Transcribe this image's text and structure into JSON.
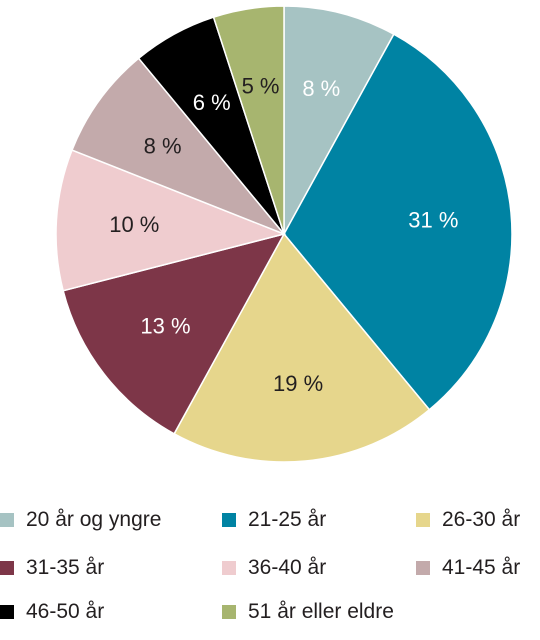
{
  "chart_data": {
    "type": "pie",
    "title": "",
    "unit": "%",
    "categories": [
      "20 år og yngre",
      "21-25 år",
      "26-30 år",
      "31-35 år",
      "36-40 år",
      "41-45 år",
      "46-50 år",
      "51 år eller eldre"
    ],
    "values": [
      8,
      31,
      19,
      13,
      10,
      8,
      6,
      5
    ],
    "labels": [
      "8 %",
      "31 %",
      "19 %",
      "13 %",
      "10 %",
      "8 %",
      "6 %",
      "5 %"
    ],
    "colors": [
      "#a6c3c3",
      "#0083a3",
      "#e6d68c",
      "#7d3648",
      "#efcccf",
      "#c3aaab",
      "#000000",
      "#a7b56f"
    ],
    "label_colors": [
      "#ffffff",
      "#ffffff",
      "#231f20",
      "#ffffff",
      "#231f20",
      "#231f20",
      "#ffffff",
      "#231f20"
    ],
    "start_angle_deg": 0,
    "direction": "clockwise",
    "legend_position": "bottom"
  }
}
